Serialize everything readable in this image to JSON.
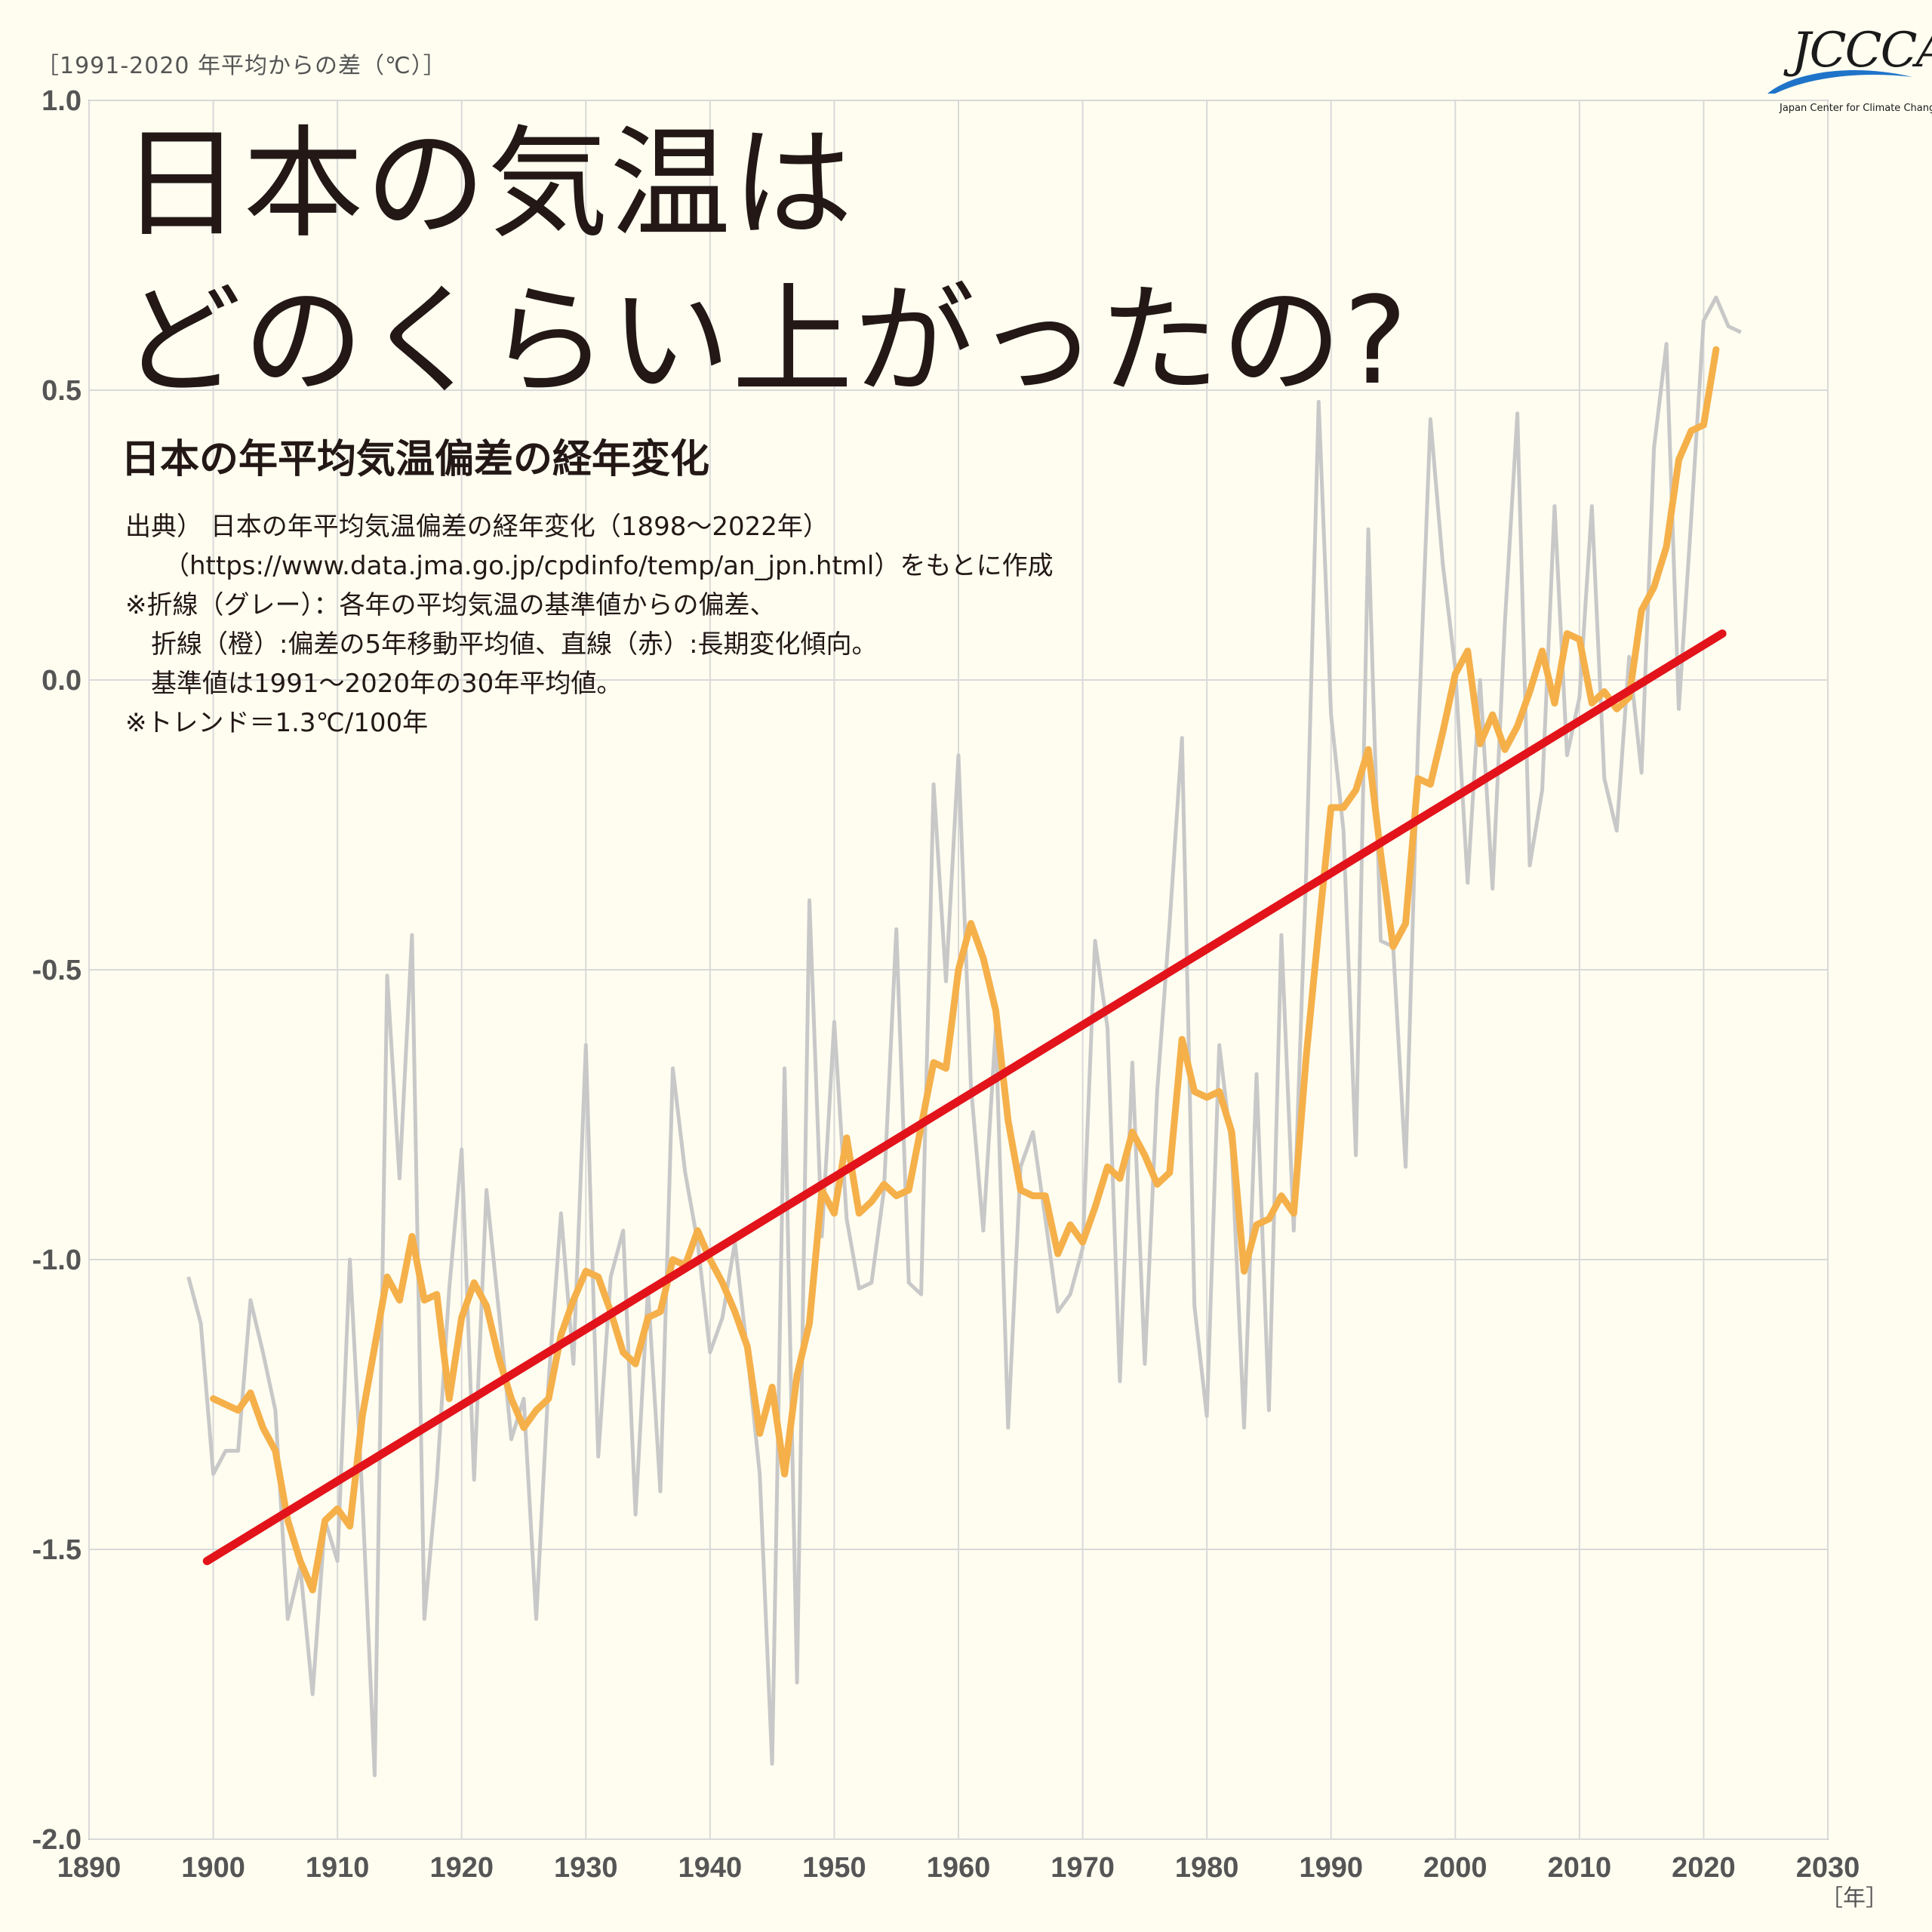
{
  "header": {
    "y_unit": "［1991-2020 年平均からの差（℃）］",
    "x_unit": "［年］",
    "title": "日本の気温は\nどのくらい上がったの?",
    "subtitle": "日本の年平均気温偏差の経年変化",
    "notes": [
      "出典） 日本の年平均気温偏差の経年変化（1898～2022年）",
      "　　（https://www.data.jma.go.jp/cpdinfo/temp/an_jpn.html）をもとに作成",
      "※折線（グレー）：各年の平均気温の基準値からの偏差、",
      "　折線（橙）:偏差の5年移動平均値、直線（赤）:長期変化傾向。",
      "　基準値は1991～2020年の30年平均値。",
      "※トレンド＝1.3℃/100年"
    ]
  },
  "logo": {
    "text": "JCCCA",
    "subtext": "Japan Center for Climate Change Actions",
    "color_swoosh": "#1f74c9"
  },
  "chart_data": {
    "type": "line",
    "xlim": [
      1890,
      2030
    ],
    "ylim": [
      -2.0,
      1.0
    ],
    "x_ticks": [
      1890,
      1900,
      1910,
      1920,
      1930,
      1940,
      1950,
      1960,
      1970,
      1980,
      1990,
      2000,
      2010,
      2020,
      2030
    ],
    "y_ticks": [
      1.0,
      0.5,
      0.0,
      -0.5,
      -1.0,
      -1.5,
      -2.0
    ],
    "y_tick_labels": [
      "1.0",
      "0.5",
      "0.0",
      "-0.5",
      "-1.0",
      "-1.5",
      "-2.0"
    ],
    "grid": true,
    "colors": {
      "annual": "#c8c8c8",
      "moving_avg": "#f5b04a",
      "trend": "#e2131a",
      "grid": "#d9d9d9",
      "axis": "#555555"
    },
    "series": [
      {
        "role": "annual",
        "x_start": 1898,
        "values": [
          -1.03,
          -1.11,
          -1.37,
          -1.33,
          -1.33,
          -1.07,
          -1.16,
          -1.26,
          -1.62,
          -1.53,
          -1.75,
          -1.45,
          -1.52,
          -1.0,
          -1.41,
          -1.89,
          -0.51,
          -0.86,
          -0.44,
          -1.62,
          -1.38,
          -1.05,
          -0.81,
          -1.38,
          -0.88,
          -1.09,
          -1.31,
          -1.24,
          -1.62,
          -1.21,
          -0.92,
          -1.18,
          -0.63,
          -1.34,
          -1.03,
          -0.95,
          -1.44,
          -1.05,
          -1.4,
          -0.67,
          -0.85,
          -0.97,
          -1.16,
          -1.1,
          -0.97,
          -1.16,
          -1.37,
          -1.87,
          -0.67,
          -1.73,
          -0.38,
          -0.96,
          -0.59,
          -0.93,
          -1.05,
          -1.04,
          -0.88,
          -0.43,
          -1.04,
          -1.06,
          -0.18,
          -0.52,
          -0.13,
          -0.7,
          -0.95,
          -0.6,
          -1.29,
          -0.84,
          -0.78,
          -0.93,
          -1.09,
          -1.06,
          -0.98,
          -0.45,
          -0.6,
          -1.21,
          -0.66,
          -1.18,
          -0.71,
          -0.42,
          -0.1,
          -1.08,
          -1.27,
          -0.63,
          -0.81,
          -1.29,
          -0.68,
          -1.26,
          -0.44,
          -0.95,
          -0.33,
          0.48,
          -0.06,
          -0.26,
          -0.82,
          0.26,
          -0.45,
          -0.46,
          -0.84,
          -0.11,
          0.45,
          0.2,
          0.02,
          -0.35,
          0.0,
          -0.36,
          0.1,
          0.46,
          -0.32,
          -0.19,
          0.3,
          -0.13,
          -0.03,
          0.3,
          -0.17,
          -0.26,
          0.04,
          -0.16,
          0.4,
          0.58,
          -0.05,
          0.28,
          0.62,
          0.66,
          0.61,
          0.6
        ]
      },
      {
        "role": "moving_avg",
        "x_start": 1900,
        "values": [
          -1.24,
          -1.25,
          -1.26,
          -1.23,
          -1.29,
          -1.33,
          -1.45,
          -1.52,
          -1.57,
          -1.45,
          -1.43,
          -1.46,
          -1.27,
          -1.15,
          -1.03,
          -1.07,
          -0.96,
          -1.07,
          -1.06,
          -1.24,
          -1.1,
          -1.04,
          -1.08,
          -1.17,
          -1.24,
          -1.29,
          -1.26,
          -1.24,
          -1.13,
          -1.07,
          -1.02,
          -1.03,
          -1.09,
          -1.16,
          -1.18,
          -1.1,
          -1.09,
          -1.0,
          -1.01,
          -0.95,
          -1.0,
          -1.04,
          -1.09,
          -1.15,
          -1.3,
          -1.22,
          -1.37,
          -1.2,
          -1.11,
          -0.88,
          -0.92,
          -0.79,
          -0.92,
          -0.9,
          -0.87,
          -0.89,
          -0.88,
          -0.77,
          -0.66,
          -0.67,
          -0.5,
          -0.42,
          -0.48,
          -0.57,
          -0.76,
          -0.88,
          -0.89,
          -0.89,
          -0.99,
          -0.94,
          -0.97,
          -0.91,
          -0.84,
          -0.86,
          -0.78,
          -0.82,
          -0.87,
          -0.85,
          -0.62,
          -0.71,
          -0.72,
          -0.71,
          -0.78,
          -1.02,
          -0.94,
          -0.93,
          -0.89,
          -0.92,
          -0.65,
          -0.43,
          -0.22,
          -0.22,
          -0.19,
          -0.12,
          -0.3,
          -0.46,
          -0.42,
          -0.17,
          -0.18,
          -0.09,
          0.01,
          0.05,
          -0.11,
          -0.06,
          -0.12,
          -0.08,
          -0.02,
          0.05,
          -0.04,
          0.08,
          0.07,
          -0.04,
          -0.02,
          -0.05,
          -0.03,
          0.12,
          0.16,
          0.23,
          0.38,
          0.43,
          0.44,
          0.57
        ]
      },
      {
        "role": "trend",
        "x": [
          1899.5,
          2021.5
        ],
        "values": [
          -1.52,
          0.08
        ]
      }
    ]
  }
}
